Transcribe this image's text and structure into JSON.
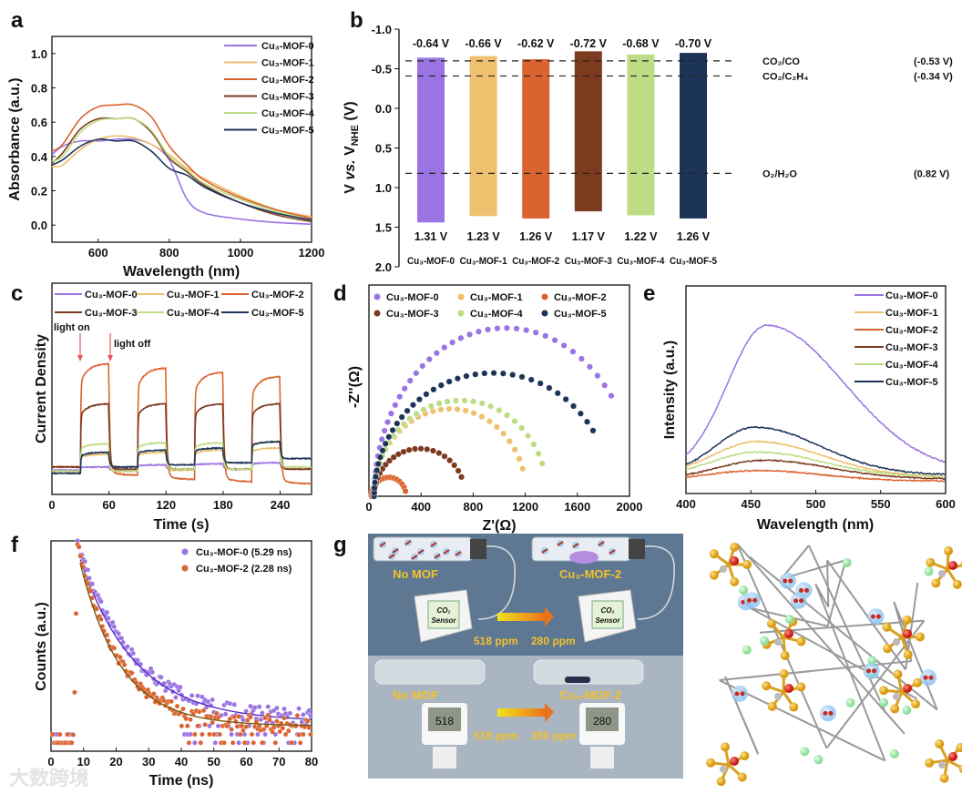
{
  "panel_labels": [
    "a",
    "b",
    "c",
    "d",
    "e",
    "f",
    "g"
  ],
  "series_names": [
    "Cu₃-MOF-0",
    "Cu₃-MOF-1",
    "Cu₃-MOF-2",
    "Cu₃-MOF-3",
    "Cu₃-MOF-4",
    "Cu₃-MOF-5"
  ],
  "colors": [
    "#9a74e2",
    "#efc06e",
    "#db6330",
    "#7c3a1f",
    "#bddc84",
    "#1c3458"
  ],
  "chart_data": [
    {
      "panel": "a",
      "type": "line",
      "xlabel": "Wavelength (nm)",
      "ylabel": "Absorbance (a.u.)",
      "xlim": [
        470,
        1200
      ],
      "ylim": [
        -0.1,
        1.1
      ],
      "xticks": [
        "600",
        "800",
        "1000",
        "1200"
      ],
      "yticks": [
        "0.0",
        "0.2",
        "0.4",
        "0.6",
        "0.8",
        "1.0"
      ],
      "legend": "top-right",
      "x": [
        470,
        500,
        550,
        600,
        650,
        700,
        750,
        800,
        850,
        900,
        1000,
        1100,
        1200
      ],
      "series": [
        {
          "name": "Cu₃-MOF-0",
          "values": [
            0.41,
            0.46,
            0.49,
            0.49,
            0.5,
            0.5,
            0.47,
            0.38,
            0.15,
            0.07,
            0.035,
            0.015,
            0.005
          ]
        },
        {
          "name": "Cu₃-MOF-1",
          "values": [
            0.34,
            0.35,
            0.44,
            0.5,
            0.52,
            0.51,
            0.47,
            0.41,
            0.33,
            0.27,
            0.17,
            0.09,
            0.05
          ]
        },
        {
          "name": "Cu₃-MOF-2",
          "values": [
            0.43,
            0.47,
            0.62,
            0.69,
            0.7,
            0.7,
            0.63,
            0.46,
            0.35,
            0.26,
            0.16,
            0.09,
            0.04
          ]
        },
        {
          "name": "Cu₃-MOF-3",
          "values": [
            0.36,
            0.42,
            0.56,
            0.62,
            0.62,
            0.62,
            0.54,
            0.39,
            0.31,
            0.23,
            0.13,
            0.06,
            0.02
          ]
        },
        {
          "name": "Cu₃-MOF-4",
          "values": [
            0.37,
            0.4,
            0.54,
            0.61,
            0.62,
            0.62,
            0.55,
            0.4,
            0.32,
            0.24,
            0.15,
            0.08,
            0.03
          ]
        },
        {
          "name": "Cu₃-MOF-5",
          "values": [
            0.35,
            0.38,
            0.46,
            0.5,
            0.49,
            0.49,
            0.43,
            0.33,
            0.29,
            0.22,
            0.13,
            0.07,
            0.03
          ]
        }
      ]
    },
    {
      "panel": "b",
      "type": "bar",
      "ylabel_parts": [
        "V ",
        "vs.",
        " V",
        "NHE",
        " (V)"
      ],
      "ylim": [
        -1.0,
        2.0
      ],
      "inverted": true,
      "yticks": [
        "-1.0",
        "-0.5",
        "0.0",
        "0.5",
        "1.0",
        "1.5",
        "2.0"
      ],
      "categories": [
        "Cu₃-MOF-0",
        "Cu₃-MOF-1",
        "Cu₃-MOF-2",
        "Cu₃-MOF-3",
        "Cu₃-MOF-4",
        "Cu₃-MOF-5"
      ],
      "cb": [
        -0.64,
        -0.66,
        -0.62,
        -0.72,
        -0.68,
        -0.7
      ],
      "cb_labels": [
        "-0.64 V",
        "-0.66 V",
        "-0.62 V",
        "-0.72 V",
        "-0.68 V",
        "-0.70 V"
      ],
      "vb": [
        1.31,
        1.23,
        1.26,
        1.17,
        1.22,
        1.26
      ],
      "vb_labels": [
        "1.31 V",
        "1.23 V",
        "1.26 V",
        "1.17 V",
        "1.22 V",
        "1.26 V"
      ],
      "reference_lines": [
        {
          "name": "CO₂/CO",
          "value": -0.53,
          "label": "(-0.53 V)"
        },
        {
          "name": "CO₂/C₂H₄",
          "value": -0.34,
          "label": "(-0.34 V)"
        },
        {
          "name": "O₂/H₂O",
          "value": 0.82,
          "label": "(0.82 V)"
        }
      ]
    },
    {
      "panel": "c",
      "type": "line",
      "xlabel": "Time (s)",
      "ylabel": "Current Density",
      "xlim": [
        0,
        273
      ],
      "ylim": [
        0,
        1
      ],
      "xticks": [
        "0",
        "60",
        "120",
        "180",
        "240"
      ],
      "legend": "top",
      "light_on_times": [
        30,
        90,
        150,
        210
      ],
      "light_off_times": [
        60,
        120,
        180,
        240
      ],
      "annotations": [
        "light on",
        "light off"
      ],
      "series": [
        {
          "name": "Cu₃-MOF-0",
          "on": [
            0.13,
            0.14,
            0.145,
            0.15
          ],
          "off": [
            0.115,
            0.115,
            0.12,
            0.12,
            0.12
          ]
        },
        {
          "name": "Cu₃-MOF-1",
          "on": [
            0.19,
            0.2,
            0.21,
            0.22
          ],
          "off": [
            0.11,
            0.11,
            0.115,
            0.12,
            0.12
          ]
        },
        {
          "name": "Cu₃-MOF-2",
          "on": [
            0.62,
            0.6,
            0.58,
            0.56
          ],
          "off": [
            0.13,
            0.09,
            0.07,
            0.06,
            0.05
          ]
        },
        {
          "name": "Cu₃-MOF-3",
          "on": [
            0.43,
            0.43,
            0.43,
            0.43
          ],
          "off": [
            0.13,
            0.12,
            0.12,
            0.12,
            0.12
          ]
        },
        {
          "name": "Cu₃-MOF-4",
          "on": [
            0.24,
            0.245,
            0.245,
            0.25
          ],
          "off": [
            0.11,
            0.11,
            0.12,
            0.12,
            0.13
          ]
        },
        {
          "name": "Cu₃-MOF-5",
          "on": [
            0.2,
            0.21,
            0.22,
            0.25
          ],
          "off": [
            0.1,
            0.13,
            0.14,
            0.15,
            0.17
          ]
        }
      ]
    },
    {
      "panel": "d",
      "type": "scatter",
      "xlabel": "Z'(Ω)",
      "ylabel": "-Z''(Ω)",
      "xlim": [
        0,
        2000
      ],
      "ylim": [
        0,
        1620
      ],
      "xticks": [
        "0",
        "400",
        "800",
        "1200",
        "1600",
        "2000"
      ],
      "legend": "top",
      "series": [
        {
          "name": "Cu₃-MOF-0",
          "arc_start": 40,
          "arc_end": 2060,
          "arc_height": 1290,
          "last_x": 1860
        },
        {
          "name": "Cu₃-MOF-1",
          "arc_start": 40,
          "arc_end": 1210,
          "arc_height": 670,
          "last_x": 1180
        },
        {
          "name": "Cu₃-MOF-2",
          "arc_start": 20,
          "arc_end": 285,
          "arc_height": 145,
          "last_x": 280
        },
        {
          "name": "Cu₃-MOF-3",
          "arc_start": 40,
          "arc_end": 740,
          "arc_height": 365,
          "last_x": 710
        },
        {
          "name": "Cu₃-MOF-4",
          "arc_start": 40,
          "arc_end": 1370,
          "arc_height": 735,
          "last_x": 1330
        },
        {
          "name": "Cu₃-MOF-5",
          "arc_start": 40,
          "arc_end": 1860,
          "arc_height": 945,
          "last_x": 1720
        }
      ]
    },
    {
      "panel": "e",
      "type": "line",
      "xlabel": "Wavelength (nm)",
      "ylabel": "Intensity (a.u.)",
      "xlim": [
        400,
        600
      ],
      "ylim": [
        0,
        1
      ],
      "xticks": [
        "400",
        "450",
        "500",
        "550",
        "600"
      ],
      "legend": "top-right",
      "series": [
        {
          "name": "Cu₃-MOF-0",
          "peak_nm": 462,
          "peak": 0.81,
          "baseline": 0.1,
          "width_left": 30,
          "width_right": 60
        },
        {
          "name": "Cu₃-MOF-1",
          "peak_nm": 455,
          "peak": 0.25,
          "baseline": 0.08,
          "width_left": 35,
          "width_right": 50
        },
        {
          "name": "Cu₃-MOF-2",
          "peak_nm": 455,
          "peak": 0.11,
          "baseline": 0.06,
          "width_left": 40,
          "width_right": 50
        },
        {
          "name": "Cu₃-MOF-3",
          "peak_nm": 460,
          "peak": 0.16,
          "baseline": 0.07,
          "width_left": 35,
          "width_right": 50
        },
        {
          "name": "Cu₃-MOF-4",
          "peak_nm": 455,
          "peak": 0.2,
          "baseline": 0.08,
          "width_left": 35,
          "width_right": 50
        },
        {
          "name": "Cu₃-MOF-5",
          "peak_nm": 453,
          "peak": 0.32,
          "baseline": 0.09,
          "width_left": 30,
          "width_right": 50
        }
      ]
    },
    {
      "panel": "f",
      "type": "scatter",
      "xlabel": "Time (ns)",
      "ylabel": "Counts (a.u.)",
      "xlim": [
        0,
        80
      ],
      "ylim": [
        0,
        1
      ],
      "xticks": [
        "0",
        "10",
        "20",
        "30",
        "40",
        "50",
        "60",
        "70",
        "80"
      ],
      "legend": "top-right",
      "series": [
        {
          "name": "Cu₃-MOF-0 (5.29 ns)",
          "color": "#9a74e2",
          "fit_color": "#5a2fc4",
          "lifetime_ns": 5.29,
          "decay_const_ns": 17,
          "floor": 0.14,
          "peak_ns": 8
        },
        {
          "name": "Cu₃-MOF-2 (2.28 ns)",
          "color": "#db6330",
          "fit_color": "#7a5a10",
          "lifetime_ns": 2.28,
          "decay_const_ns": 12.5,
          "floor": 0.12,
          "peak_ns": 8
        }
      ]
    }
  ],
  "panel_g": {
    "no_mof": "No MOF",
    "mof": "Cu₃-MOF-2",
    "sensor_co2": "CO₂",
    "sensor_label": "Sensor",
    "ppm_before": "518 ppm",
    "ppm_after": "280 ppm",
    "lcd_before": "518",
    "lcd_after": "280"
  },
  "watermark": "大数跨境"
}
